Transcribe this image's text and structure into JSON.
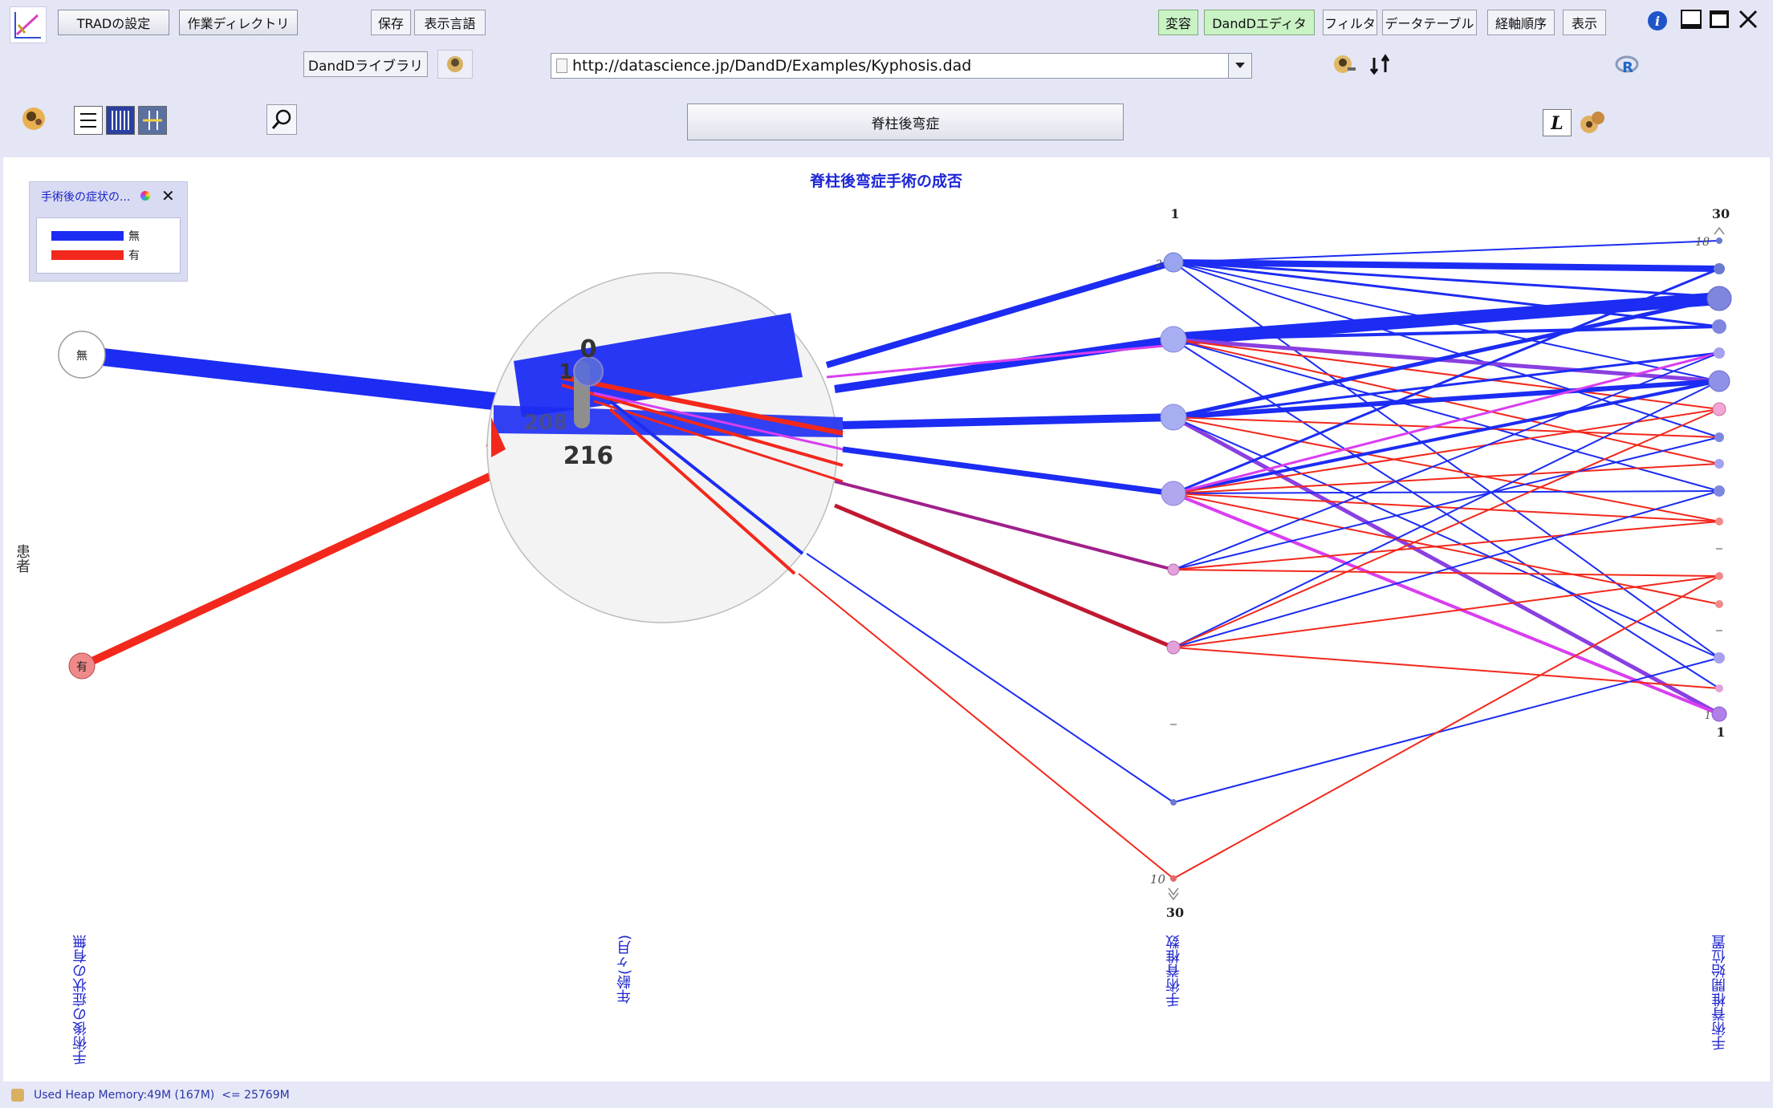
{
  "toolbar": {
    "row1": {
      "trad_settings": "TRADの設定",
      "work_dir": "作業ディレクトリ",
      "save": "保存",
      "display_language": "表示言語",
      "transform": "変容",
      "dandd_editor": "DandDエディタ",
      "filter": "フィルタ",
      "data_table": "データテーブル",
      "axis_order": "経軸順序",
      "display": "表示"
    },
    "row2": {
      "library": "DandDライブラリ",
      "url_value": "http://datascience.jp/DandD/Examples/Kyphosis.dad"
    },
    "row3": {
      "dataset_button": "脊柱後弯症"
    }
  },
  "chart": {
    "title": "脊柱後弯症手術の成否",
    "side_label": "患者",
    "legend": {
      "title": "手術後の症状の...",
      "items": [
        {
          "label": "無",
          "color": "#1c2cf2"
        },
        {
          "label": "有",
          "color": "#f2281c"
        }
      ]
    },
    "axes": [
      {
        "label": "手術後の症状の有無"
      },
      {
        "label": "年齢(ヶ月)"
      },
      {
        "label": "手術脊椎数"
      },
      {
        "label": "手術脊椎開始位置"
      }
    ],
    "node_labels": {
      "absent": "無",
      "present": "有"
    },
    "lens_labels": {
      "top": "0",
      "mid": "1",
      "low": "208",
      "bottom": "216"
    },
    "axis3_ticks": {
      "top": "1",
      "bottom": "30",
      "bottom_value": "10",
      "top_value": "2"
    },
    "axis4_ticks": {
      "top": "30",
      "bottom": "1",
      "top_value": "18",
      "bottom_value": "1"
    },
    "colors": {
      "absent": "#1c2cf2",
      "present": "#f2281c",
      "mixed": "#d93ef0",
      "purple": "#8a3fe0"
    }
  },
  "status": {
    "heap": "Used Heap Memory:49M (167M)  <= 25769M"
  }
}
